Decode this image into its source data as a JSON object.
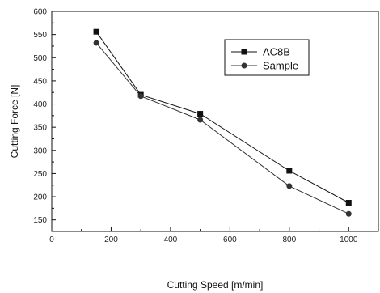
{
  "chart_data": {
    "type": "line",
    "title": "",
    "xlabel": "Cutting Speed [m/min]",
    "ylabel": "Cutting Force [N]",
    "xlim": [
      0,
      1100
    ],
    "ylim": [
      125,
      600
    ],
    "xticks": [
      0,
      200,
      400,
      600,
      800,
      1000
    ],
    "yticks": [
      150,
      200,
      250,
      300,
      350,
      400,
      450,
      500,
      550,
      600
    ],
    "grid": false,
    "legend_position": "top-right",
    "series": [
      {
        "name": "AC8B",
        "marker": "square",
        "line": "solid",
        "color": "#111111",
        "x": [
          150,
          300,
          500,
          800,
          1000
        ],
        "y": [
          556,
          420,
          379,
          256,
          187
        ]
      },
      {
        "name": "Sample",
        "marker": "circle",
        "line": "solid",
        "color": "#333333",
        "x": [
          150,
          300,
          500,
          800,
          1000
        ],
        "y": [
          532,
          417,
          366,
          223,
          163
        ]
      }
    ]
  }
}
